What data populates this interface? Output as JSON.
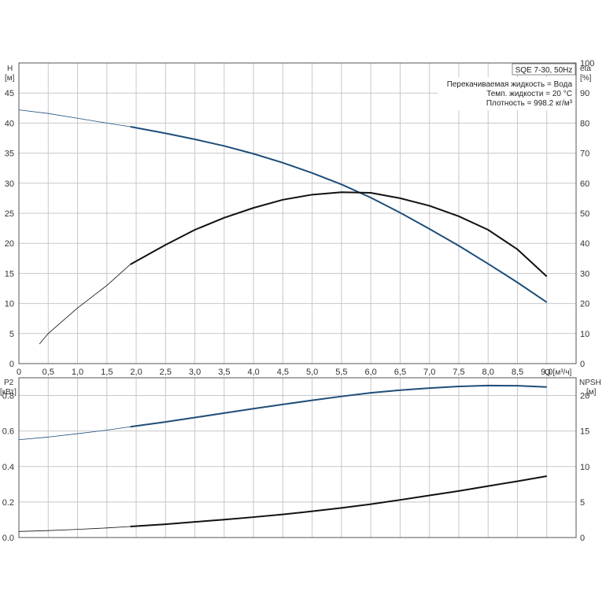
{
  "chart_data": [
    {
      "type": "line",
      "title": "SQE 7-30, 50Hz",
      "info_lines": [
        "Перекачиваемая жидкость = Вода",
        "Темп. жидкости = 20 °C",
        "Плотность = 998.2 кг/м³"
      ],
      "xlabel": "Q [м³/ч]",
      "ylabel": "H",
      "ylabel_unit": "[м]",
      "y2label": "eta",
      "y2label_unit": "[%]",
      "xlim": [
        0,
        9.5
      ],
      "ylim": [
        0,
        50
      ],
      "y2lim": [
        0,
        100
      ],
      "x_ticks": [
        "0",
        "0,5",
        "1,0",
        "1,5",
        "2,0",
        "2,5",
        "3,0",
        "3,5",
        "4,0",
        "4,5",
        "5,0",
        "5,5",
        "6,0",
        "6,5",
        "7,0",
        "7,5",
        "8,0",
        "8,5",
        "9,0"
      ],
      "y_ticks": [
        "0",
        "5",
        "10",
        "15",
        "20",
        "25",
        "30",
        "35",
        "40",
        "45"
      ],
      "y2_ticks": [
        "0",
        "10",
        "20",
        "30",
        "40",
        "50",
        "60",
        "70",
        "80",
        "90",
        "100"
      ],
      "grid": true,
      "series": [
        {
          "axis": "left",
          "color": "#1f4e79",
          "x": [
            0,
            0.5,
            1.0,
            1.5,
            1.9,
            2.5,
            3.0,
            3.5,
            4.0,
            4.5,
            5.0,
            5.5,
            6.0,
            6.5,
            7.0,
            7.5,
            8.0,
            8.5,
            9.0
          ],
          "y": [
            42.2,
            41.6,
            40.8,
            40.0,
            39.4,
            38.3,
            37.3,
            36.2,
            34.9,
            33.4,
            31.7,
            29.8,
            27.6,
            25.1,
            22.4,
            19.6,
            16.6,
            13.5,
            10.2
          ]
        },
        {
          "axis": "right",
          "color": "#111111",
          "x": [
            0.35,
            0.5,
            1.0,
            1.5,
            1.9,
            2.5,
            3.0,
            3.5,
            4.0,
            4.5,
            5.0,
            5.5,
            6.0,
            6.5,
            7.0,
            7.5,
            8.0,
            8.5,
            9.0
          ],
          "y": [
            6.5,
            10.0,
            18.5,
            26.0,
            33.0,
            39.5,
            44.5,
            48.5,
            51.8,
            54.5,
            56.2,
            57.0,
            56.8,
            55.0,
            52.5,
            49.0,
            44.5,
            38.0,
            29.0
          ]
        }
      ]
    },
    {
      "type": "line",
      "xlim": [
        0,
        9.5
      ],
      "ylabel": "P2",
      "ylabel_unit": "[кВт]",
      "y2label": "NPSH",
      "y2label_unit": "[м]",
      "ylim": [
        0,
        0.9
      ],
      "y2lim": [
        0,
        22.5
      ],
      "y_ticks": [
        "0.0",
        "0.2",
        "0.4",
        "0.6",
        "0.8"
      ],
      "y2_ticks": [
        "0",
        "5",
        "10",
        "15",
        "20"
      ],
      "grid": true,
      "series": [
        {
          "axis": "left",
          "color": "#1f4e79",
          "x": [
            0,
            0.5,
            1.0,
            1.5,
            1.9,
            2.5,
            3.0,
            3.5,
            4.0,
            4.5,
            5.0,
            5.5,
            6.0,
            6.5,
            7.0,
            7.5,
            8.0,
            8.5,
            9.0
          ],
          "y": [
            0.551,
            0.566,
            0.585,
            0.605,
            0.624,
            0.651,
            0.676,
            0.701,
            0.726,
            0.75,
            0.773,
            0.795,
            0.815,
            0.83,
            0.842,
            0.851,
            0.856,
            0.855,
            0.848
          ]
        },
        {
          "axis": "left",
          "color": "#111111",
          "x": [
            0,
            0.5,
            1.0,
            1.5,
            1.9,
            2.5,
            3.0,
            3.5,
            4.0,
            4.5,
            5.0,
            5.5,
            6.0,
            6.5,
            7.0,
            7.5,
            8.0,
            8.5,
            9.0
          ],
          "y": [
            0.034,
            0.039,
            0.046,
            0.054,
            0.062,
            0.075,
            0.088,
            0.101,
            0.115,
            0.13,
            0.148,
            0.167,
            0.188,
            0.212,
            0.237,
            0.262,
            0.29,
            0.317,
            0.346
          ]
        }
      ]
    }
  ]
}
